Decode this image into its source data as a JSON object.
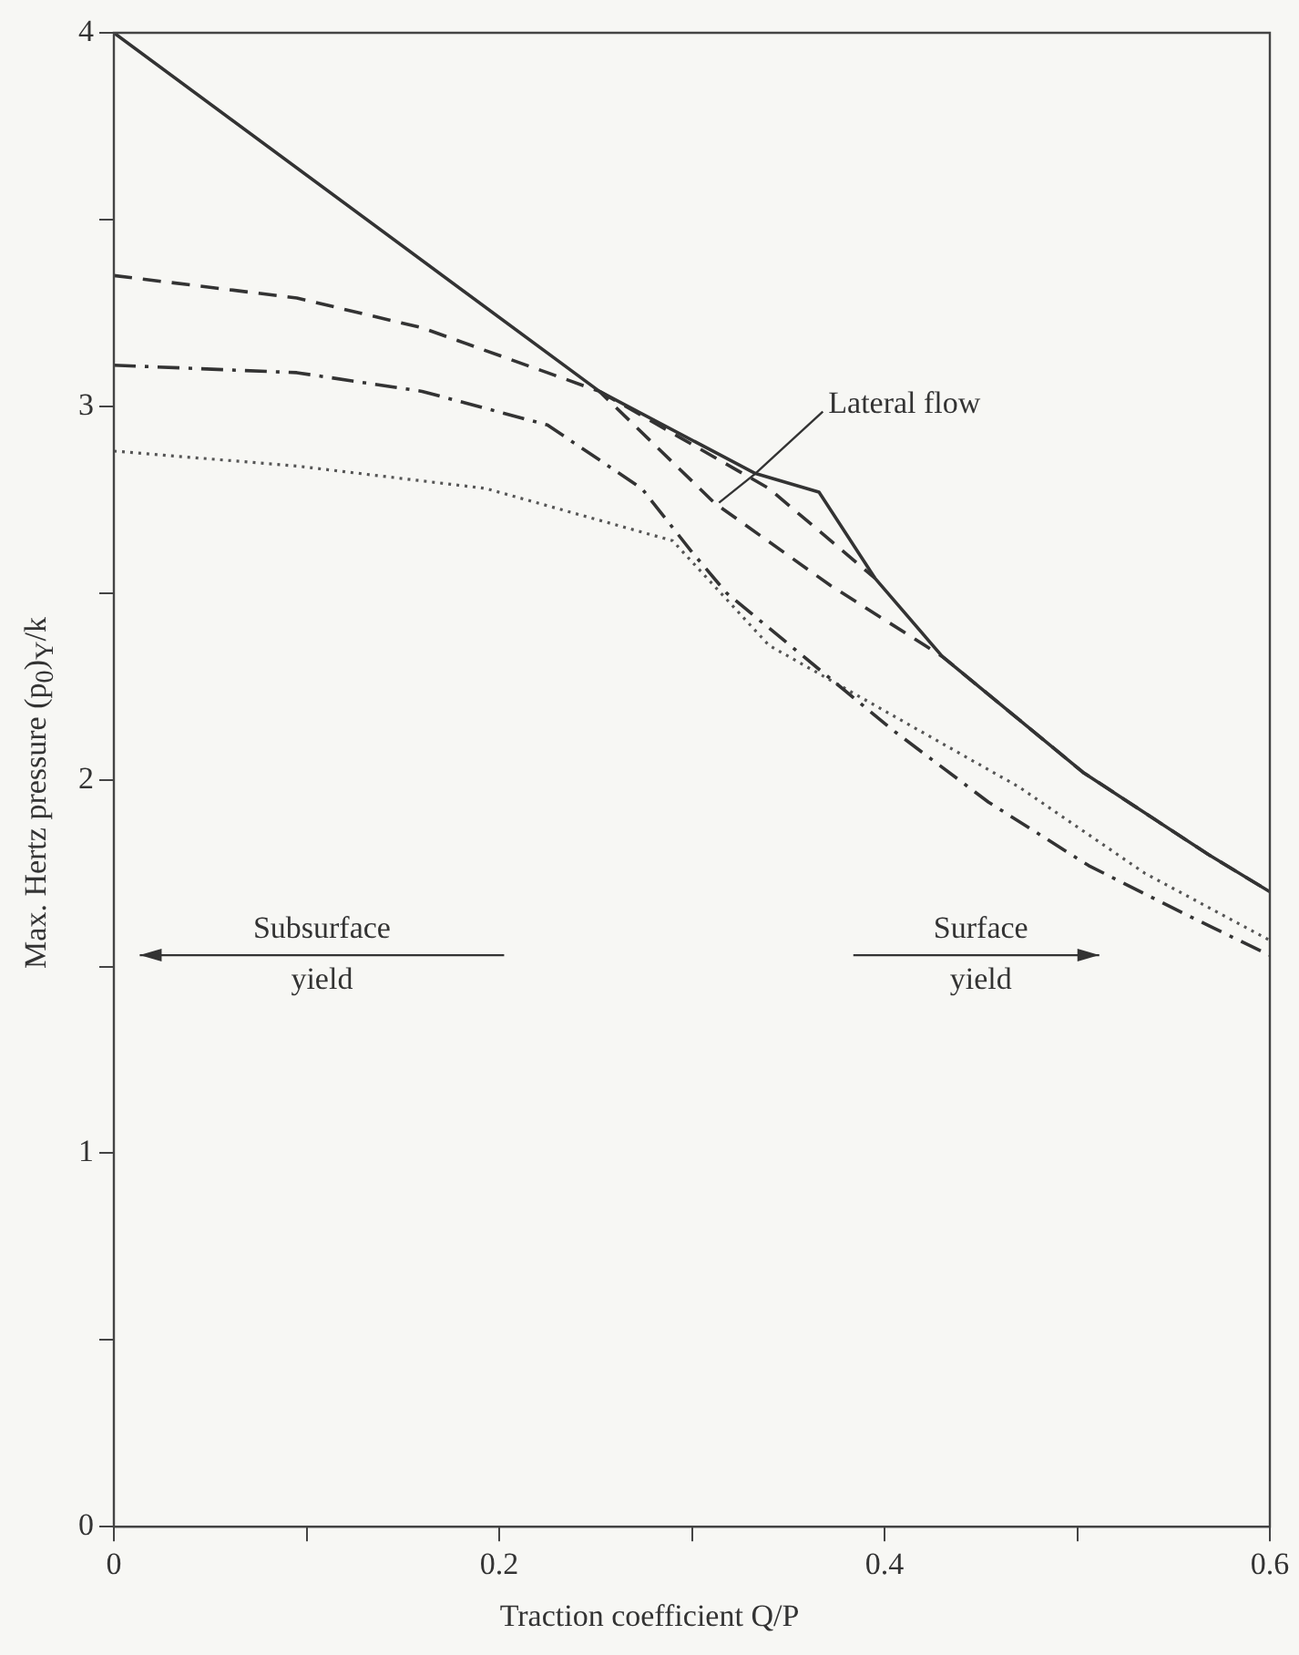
{
  "chart_data": {
    "type": "line",
    "xlabel": "Traction coefficient Q/P",
    "ylabel": "Max. Hertz pressure (p$_{0}$)$_{Y}$/k",
    "xlim": [
      0,
      0.6
    ],
    "ylim": [
      0,
      4
    ],
    "xticks": [
      0,
      {
        "value": 0.1,
        "label": null
      },
      0.2,
      {
        "value": 0.3,
        "label": null
      },
      0.4,
      {
        "value": 0.5,
        "label": null
      },
      0.6
    ],
    "yticks": [
      0,
      {
        "value": 0.5,
        "label": null
      },
      1,
      {
        "value": 1.5,
        "label": null
      },
      2,
      {
        "value": 2.5,
        "label": null
      },
      3,
      {
        "value": 3.5,
        "label": null
      },
      4
    ],
    "grid": false,
    "legend": false,
    "marker": "none",
    "series": [
      {
        "color": "#333333",
        "line_style": "solid",
        "x": [
          0,
          0.252,
          0.333,
          0.366,
          0.395,
          0.43,
          0.503,
          0.568,
          0.6
        ],
        "values": [
          4,
          3.04,
          2.82,
          2.77,
          2.54,
          2.33,
          2.02,
          1.8,
          1.7
        ]
      },
      {
        "color": "#333333",
        "line_style": "dashed",
        "x": [
          0,
          0.095,
          0.16,
          0.225,
          0.252,
          0.312,
          0.372,
          0.43,
          0.503,
          0.568,
          0.6
        ],
        "values": [
          3.35,
          3.29,
          3.21,
          3.09,
          3.04,
          2.74,
          2.52,
          2.33,
          2.02,
          1.8,
          1.7
        ]
      },
      {
        "color": "#333333",
        "line_style": "dashed",
        "x": [
          0.252,
          0.34,
          0.395
        ],
        "values": [
          3.04,
          2.78,
          2.54
        ]
      },
      {
        "color": "#333333",
        "line_style": "dashdot",
        "x": [
          0,
          0.095,
          0.16,
          0.225,
          0.274,
          0.3,
          0.318,
          0.405,
          0.454,
          0.506,
          0.56,
          0.6
        ],
        "values": [
          3.11,
          3.09,
          3.04,
          2.95,
          2.78,
          2.61,
          2.5,
          2.13,
          1.94,
          1.77,
          1.63,
          1.53
        ]
      },
      {
        "color": "#555555",
        "line_style": "dotted",
        "x": [
          0,
          0.095,
          0.193,
          0.29,
          0.34,
          0.405,
          0.47,
          0.535,
          0.6
        ],
        "values": [
          2.88,
          2.84,
          2.78,
          2.64,
          2.36,
          2.17,
          1.98,
          1.75,
          1.57
        ]
      }
    ],
    "annotations": [
      {
        "text": "Lateral flow",
        "x": 0.333,
        "y": 2.82
      },
      "Subsurface\nyield",
      "Surface\nyield"
    ]
  }
}
